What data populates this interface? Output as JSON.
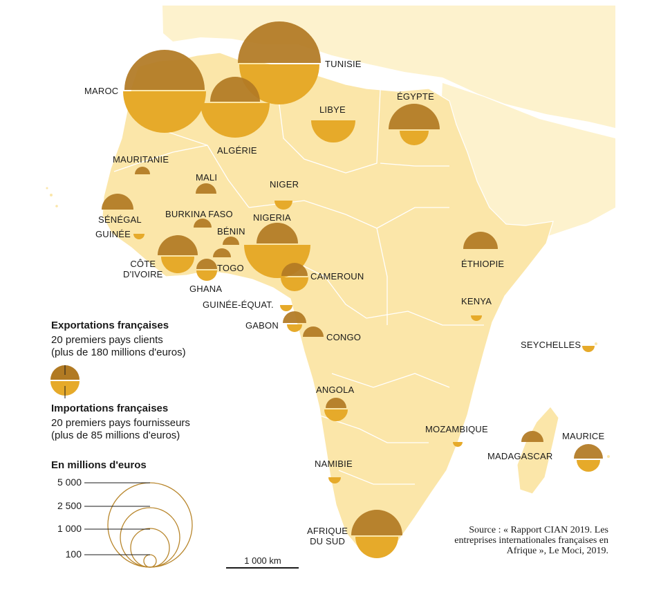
{
  "colors": {
    "land": "#fbe6a9",
    "land_far": "#fdf2cd",
    "border": "#ffffff",
    "export": "#b17a23",
    "import": "#e6aa2a",
    "scale_ring": "#b8862c"
  },
  "countries": [
    {
      "label": "MAROC"
    },
    {
      "label": "TUNISIE"
    },
    {
      "label": "ALGÉRIE"
    },
    {
      "label": "LIBYE"
    },
    {
      "label": "ÉGYPTE"
    },
    {
      "label": "MAURITANIE"
    },
    {
      "label": "MALI"
    },
    {
      "label": "NIGER"
    },
    {
      "label": "SÉNÉGAL"
    },
    {
      "label": "GUINÉE"
    },
    {
      "label": "BURKINA FASO"
    },
    {
      "label": "NIGERIA"
    },
    {
      "label": "BÉNIN"
    },
    {
      "label": "CÔTE D'IVOIRE",
      "lines": [
        "CÔTE",
        "D'IVOIRE"
      ]
    },
    {
      "label": "TOGO"
    },
    {
      "label": "GHANA"
    },
    {
      "label": "CAMEROUN"
    },
    {
      "label": "GUINÉE-ÉQUAT."
    },
    {
      "label": "GABON"
    },
    {
      "label": "CONGO"
    },
    {
      "label": "ÉTHIOPIE"
    },
    {
      "label": "KENYA"
    },
    {
      "label": "SEYCHELLES"
    },
    {
      "label": "ANGOLA"
    },
    {
      "label": "MOZAMBIQUE"
    },
    {
      "label": "MADAGASCAR"
    },
    {
      "label": "MAURICE"
    },
    {
      "label": "NAMIBIE"
    },
    {
      "label": "AFRIQUE DU SUD",
      "lines": [
        "AFRIQUE",
        "DU SUD"
      ]
    }
  ],
  "legend": {
    "exports_title": "Exportations françaises",
    "exports_line1": "20 premiers pays clients",
    "exports_line2": "(plus de 180 millions d'euros)",
    "imports_title": "Importations françaises",
    "imports_line1": "20 premiers pays fournisseurs",
    "imports_line2": "(plus de 85 millions d'euros)",
    "scale_title": "En millions d'euros",
    "scale_values": [
      "5 000",
      "2 500",
      "1 000",
      "100"
    ]
  },
  "scale_bar_label": "1 000 km",
  "source": "Source : « Rapport CIAN 2019. Les entreprises internationales françaises en Afrique », Le Moci, 2019."
}
